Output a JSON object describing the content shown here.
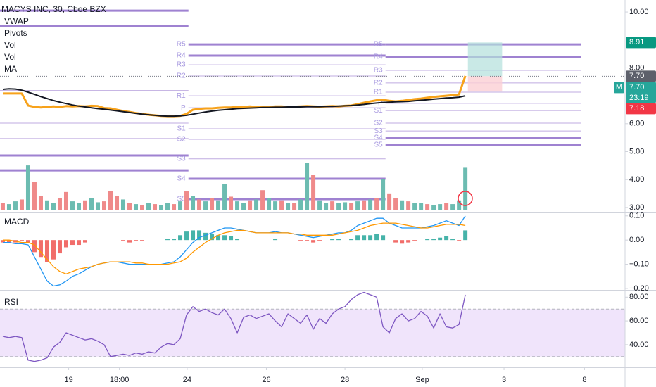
{
  "chart_data": [
    {
      "type": "price",
      "title": "MACYS INC, 30, Cboe BZX",
      "legend": [
        "VWAP",
        "Pivots",
        "Vol",
        "Vol",
        "MA"
      ],
      "x": [
        0,
        1,
        2,
        3,
        4,
        5,
        6,
        7,
        8,
        9,
        10,
        11,
        12,
        13,
        14,
        15,
        16,
        17,
        18,
        19,
        20,
        21,
        22,
        23,
        24,
        25,
        26,
        27,
        28,
        29,
        30,
        31,
        32,
        33,
        34,
        35,
        36,
        37,
        38,
        39,
        40,
        41,
        42,
        43,
        44,
        45,
        46,
        47,
        48,
        49,
        50,
        51,
        52,
        53,
        54,
        55,
        56,
        57,
        58,
        59,
        60,
        61,
        62,
        63,
        64,
        65,
        66,
        67,
        68,
        69,
        70,
        71,
        72,
        73
      ],
      "xlim": [
        -0.44,
        98.2
      ],
      "xticks": [
        {
          "value": 10.4,
          "label": "19"
        },
        {
          "value": 18.4,
          "label": "18:00"
        },
        {
          "value": 29.1,
          "label": "24"
        },
        {
          "value": 41.6,
          "label": "26"
        },
        {
          "value": 54,
          "label": "28"
        },
        {
          "value": 66.2,
          "label": "Sep"
        },
        {
          "value": 79.1,
          "label": "3"
        },
        {
          "value": 91.8,
          "label": "8"
        }
      ],
      "ylim": [
        2.82,
        10.43
      ],
      "yticks": [
        {
          "value": 10,
          "label": "10.00"
        },
        {
          "value": 8,
          "label": "8.00"
        },
        {
          "value": 6,
          "label": "6.00"
        },
        {
          "value": 5,
          "label": "5.00"
        },
        {
          "value": 4,
          "label": "4.00"
        },
        {
          "value": 3,
          "label": "3.00"
        }
      ],
      "series": [
        {
          "color": "#f7a21b",
          "values": [
            7.08,
            7.08,
            7.08,
            7.08,
            6.65,
            6.6,
            6.58,
            6.6,
            6.62,
            6.6,
            6.63,
            6.62,
            6.63,
            6.62,
            6.64,
            6.63,
            6.56,
            6.55,
            6.5,
            6.45,
            6.42,
            6.38,
            6.35,
            6.32,
            6.3,
            6.28,
            6.27,
            6.27,
            6.28,
            6.35,
            6.5,
            6.53,
            6.55,
            6.55,
            6.57,
            6.58,
            6.58,
            6.6,
            6.6,
            6.62,
            6.6,
            6.61,
            6.6,
            6.62,
            6.62,
            6.6,
            6.61,
            6.62,
            6.63,
            6.62,
            6.61,
            6.62,
            6.63,
            6.62,
            6.64,
            6.65,
            6.7,
            6.75,
            6.8,
            6.84,
            6.86,
            6.82,
            6.8,
            6.82,
            6.85,
            6.88,
            6.9,
            6.93,
            6.96,
            6.98,
            7.0,
            7.02,
            7.05,
            7.71
          ]
        },
        {
          "color": "#131722",
          "values": [
            7.23,
            7.25,
            7.24,
            7.2,
            7.13,
            7.05,
            6.97,
            6.9,
            6.83,
            6.77,
            6.72,
            6.67,
            6.63,
            6.6,
            6.57,
            6.54,
            6.52,
            6.49,
            6.46,
            6.43,
            6.4,
            6.37,
            6.34,
            6.32,
            6.3,
            6.28,
            6.27,
            6.27,
            6.28,
            6.3,
            6.34,
            6.38,
            6.42,
            6.45,
            6.48,
            6.5,
            6.52,
            6.54,
            6.55,
            6.56,
            6.57,
            6.58,
            6.58,
            6.59,
            6.59,
            6.6,
            6.6,
            6.6,
            6.61,
            6.61,
            6.61,
            6.62,
            6.62,
            6.63,
            6.64,
            6.65,
            6.67,
            6.69,
            6.72,
            6.74,
            6.76,
            6.77,
            6.78,
            6.79,
            6.8,
            6.82,
            6.84,
            6.86,
            6.88,
            6.9,
            6.92,
            6.93,
            6.95,
            7.0
          ]
        }
      ],
      "volume": {
        "ylim": [
          -6,
          450
        ],
        "values": [
          15,
          12,
          18,
          22,
          95,
          60,
          30,
          20,
          15,
          25,
          38,
          18,
          14,
          20,
          25,
          16,
          18,
          40,
          30,
          22,
          15,
          12,
          10,
          14,
          12,
          10,
          15,
          12,
          18,
          40,
          30,
          22,
          18,
          25,
          20,
          55,
          28,
          18,
          15,
          20,
          22,
          42,
          25,
          18,
          20,
          15,
          14,
          22,
          100,
          75,
          20,
          15,
          18,
          14,
          16,
          15,
          18,
          20,
          22,
          25,
          65,
          35,
          25,
          20,
          18,
          15,
          14,
          12,
          10,
          12,
          15,
          12,
          20,
          90
        ],
        "colors": [
          "#ef8a8a",
          "#6cbcb1",
          "#6cbcb1",
          "#ef8a8a",
          "#6cbcb1",
          "#ef8a8a",
          "#ef8a8a",
          "#6cbcb1",
          "#6cbcb1",
          "#ef8a8a",
          "#ef8a8a",
          "#6cbcb1",
          "#6cbcb1",
          "#ef8a8a",
          "#6cbcb1",
          "#6cbcb1",
          "#ef8a8a",
          "#ef8a8a",
          "#ef8a8a",
          "#6cbcb1",
          "#ef8a8a",
          "#6cbcb1",
          "#ef8a8a",
          "#6cbcb1",
          "#ef8a8a",
          "#6cbcb1",
          "#6cbcb1",
          "#ef8a8a",
          "#6cbcb1",
          "#ef8a8a",
          "#6cbcb1",
          "#ef8a8a",
          "#6cbcb1",
          "#ef8a8a",
          "#6cbcb1",
          "#6cbcb1",
          "#ef8a8a",
          "#6cbcb1",
          "#6cbcb1",
          "#ef8a8a",
          "#6cbcb1",
          "#ef8a8a",
          "#6cbcb1",
          "#6cbcb1",
          "#ef8a8a",
          "#6cbcb1",
          "#ef8a8a",
          "#6cbcb1",
          "#6cbcb1",
          "#ef8a8a",
          "#6cbcb1",
          "#6cbcb1",
          "#ef8a8a",
          "#6cbcb1",
          "#6cbcb1",
          "#ef8a8a",
          "#6cbcb1",
          "#ef8a8a",
          "#6cbcb1",
          "#ef8a8a",
          "#6cbcb1",
          "#ef8a8a",
          "#ef8a8a",
          "#6cbcb1",
          "#ef8a8a",
          "#6cbcb1",
          "#6cbcb1",
          "#ef8a8a",
          "#6cbcb1",
          "#6cbcb1",
          "#ef8a8a",
          "#6cbcb1",
          "#6cbcb1",
          "#6cbcb1"
        ]
      },
      "pivot_color": "#9575cd",
      "pivot_label_color": "#a99be0",
      "pivots": [
        {
          "start": -0.44,
          "end": 29.3,
          "values": [
            10.05,
            9.5,
            7.19,
            6.02,
            5.47,
            4.86,
            4.33
          ]
        },
        {
          "start": 29.3,
          "end": 60.4,
          "labels": [
            "R5",
            "R4",
            "R3",
            "R2",
            "R1",
            "P",
            "S1",
            "S2",
            "S3",
            "S4",
            "S5"
          ],
          "values": [
            8.84,
            8.44,
            8.11,
            7.71,
            7.0,
            6.57,
            5.82,
            5.44,
            4.74,
            4.03,
            3.3
          ]
        },
        {
          "start": 60.4,
          "end": 91.3,
          "labels": [
            "R5",
            "R4",
            "R3",
            "R2",
            "R1",
            "P",
            "S1",
            "S2",
            "S3",
            "S4",
            "S5"
          ],
          "values": [
            8.84,
            8.39,
            7.91,
            7.46,
            7.13,
            6.73,
            6.47,
            6.02,
            5.74,
            5.49,
            5.24
          ]
        }
      ],
      "position": {
        "start": 73.4,
        "end": 78.8,
        "target": 8.91,
        "entry": 7.7,
        "stop": 7.15,
        "profit_color": "#b2dfdb",
        "loss_color": "#fbd0d4"
      },
      "price_labels": [
        {
          "value": 8.91,
          "label": "8.91",
          "color": "#089981"
        },
        {
          "value": 7.7,
          "label": "7.70",
          "color": "#5d606b"
        },
        {
          "value": 7.7,
          "label": "7.70",
          "color": "#26a69a",
          "sub": "23:19",
          "tag": "M"
        },
        {
          "value": 7.18,
          "label": "7.18",
          "color": "#f23645"
        }
      ]
    },
    {
      "type": "macd",
      "title": "MACD",
      "ylim": [
        -0.206,
        0.111
      ],
      "yticks": [
        {
          "value": 0.1,
          "label": "0.10"
        },
        {
          "value": 0,
          "label": "0.00"
        },
        {
          "value": -0.1,
          "label": "−0.10"
        },
        {
          "value": -0.2,
          "label": "−0.20"
        }
      ],
      "series": [
        {
          "color": "#2196f3",
          "values": [
            -0.01,
            -0.01,
            -0.015,
            -0.015,
            -0.02,
            -0.07,
            -0.12,
            -0.17,
            -0.19,
            -0.185,
            -0.17,
            -0.15,
            -0.14,
            -0.125,
            -0.11,
            -0.1,
            -0.095,
            -0.09,
            -0.09,
            -0.095,
            -0.1,
            -0.1,
            -0.1,
            -0.1,
            -0.1,
            -0.1,
            -0.095,
            -0.09,
            -0.07,
            -0.04,
            -0.01,
            0.01,
            0.02,
            0.03,
            0.04,
            0.05,
            0.05,
            0.045,
            0.04,
            0.035,
            0.03,
            0.03,
            0.03,
            0.035,
            0.03,
            0.03,
            0.025,
            0.02,
            0.015,
            0.01,
            0.015,
            0.02,
            0.025,
            0.03,
            0.03,
            0.04,
            0.06,
            0.07,
            0.08,
            0.09,
            0.09,
            0.07,
            0.06,
            0.05,
            0.05,
            0.05,
            0.05,
            0.055,
            0.06,
            0.07,
            0.08,
            0.07,
            0.06,
            0.1
          ]
        },
        {
          "color": "#ff9800",
          "values": [
            0,
            0,
            -0.005,
            -0.01,
            -0.01,
            -0.02,
            -0.05,
            -0.08,
            -0.11,
            -0.13,
            -0.14,
            -0.13,
            -0.12,
            -0.115,
            -0.11,
            -0.1,
            -0.095,
            -0.09,
            -0.09,
            -0.09,
            -0.09,
            -0.095,
            -0.095,
            -0.1,
            -0.1,
            -0.1,
            -0.1,
            -0.095,
            -0.09,
            -0.075,
            -0.05,
            -0.03,
            -0.01,
            0.005,
            0.02,
            0.03,
            0.035,
            0.04,
            0.04,
            0.035,
            0.03,
            0.03,
            0.03,
            0.03,
            0.03,
            0.03,
            0.025,
            0.025,
            0.02,
            0.02,
            0.02,
            0.02,
            0.02,
            0.025,
            0.03,
            0.035,
            0.04,
            0.05,
            0.06,
            0.065,
            0.07,
            0.07,
            0.07,
            0.065,
            0.06,
            0.055,
            0.05,
            0.05,
            0.055,
            0.06,
            0.065,
            0.065,
            0.065,
            0.06
          ]
        }
      ],
      "histogram": {
        "pos_color": "#26a69a",
        "neg_color": "#ef5350",
        "values": [
          -0.01,
          -0.01,
          -0.01,
          -0.005,
          -0.01,
          -0.05,
          -0.07,
          -0.09,
          -0.08,
          -0.055,
          -0.03,
          -0.02,
          -0.02,
          -0.01,
          0,
          0,
          0,
          0,
          0,
          -0.005,
          -0.01,
          -0.005,
          -0.005,
          0,
          0,
          0,
          0.005,
          0.005,
          0.02,
          0.035,
          0.04,
          0.04,
          0.03,
          0.025,
          0.02,
          0.02,
          0.015,
          0.005,
          0,
          0,
          0,
          0,
          0,
          0.005,
          0,
          0,
          0,
          -0.005,
          -0.005,
          -0.01,
          -0.005,
          0,
          0.005,
          0.005,
          0,
          0.005,
          0.02,
          0.02,
          0.02,
          0.025,
          0.02,
          0,
          -0.01,
          -0.015,
          -0.01,
          -0.005,
          0,
          0.005,
          0.005,
          0.01,
          0.015,
          0.005,
          -0.005,
          0.04
        ]
      }
    },
    {
      "type": "rsi",
      "title": "RSI",
      "ylim": [
        21,
        85.5
      ],
      "yticks": [
        {
          "value": 80,
          "label": "80.00"
        },
        {
          "value": 60,
          "label": "60.00"
        },
        {
          "value": 40,
          "label": "40.00"
        }
      ],
      "band": [
        30,
        70
      ],
      "band_color": "#f0e4fb",
      "series": [
        {
          "color": "#7e57c2",
          "values": [
            47,
            46,
            47,
            46,
            27,
            26,
            27,
            29,
            38,
            42,
            50,
            48,
            46,
            44,
            45,
            43,
            40,
            30,
            31,
            32,
            31,
            33,
            32,
            34,
            33,
            38,
            41,
            40,
            45,
            65,
            72,
            68,
            70,
            67,
            65,
            70,
            62,
            50,
            63,
            65,
            62,
            64,
            66,
            60,
            55,
            66,
            62,
            58,
            65,
            53,
            62,
            58,
            66,
            70,
            72,
            78,
            82,
            84,
            82,
            80,
            55,
            50,
            62,
            66,
            60,
            62,
            68,
            64,
            54,
            66,
            55,
            54,
            57,
            82
          ]
        }
      ]
    }
  ]
}
